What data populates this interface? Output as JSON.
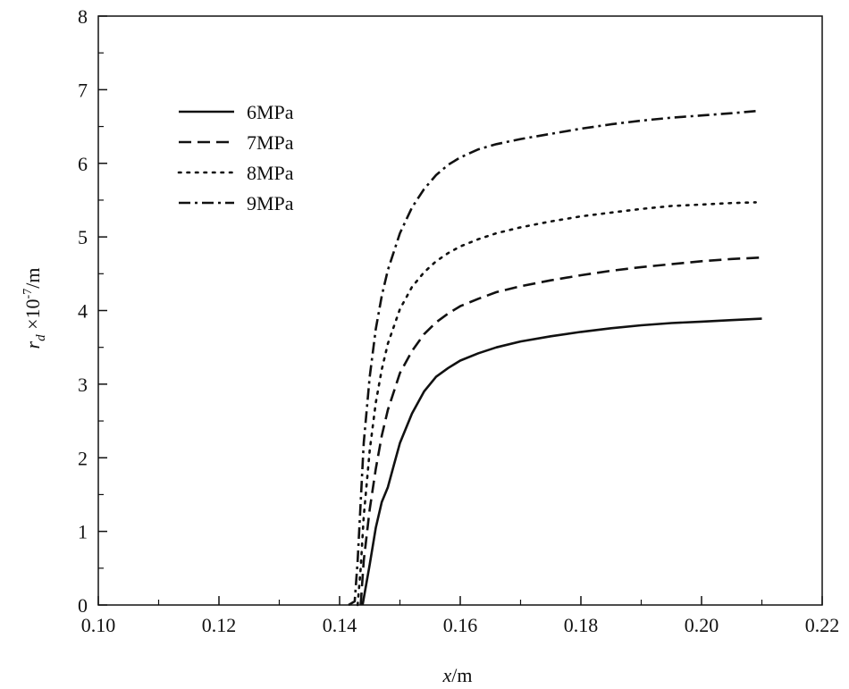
{
  "chart_data": {
    "type": "line",
    "xlabel": "x/m",
    "ylabel": "r_d ×10^-7/m",
    "xlim": [
      0.1,
      0.22
    ],
    "ylim": [
      0,
      8
    ],
    "xticks": [
      "0.10",
      "0.12",
      "0.14",
      "0.16",
      "0.18",
      "0.20",
      "0.22"
    ],
    "yticks": [
      "0",
      "1",
      "2",
      "3",
      "4",
      "5",
      "6",
      "7",
      "8"
    ],
    "grid": false,
    "legend_position": "top-left",
    "series": [
      {
        "name": "6MPa",
        "style": "solid",
        "x": [
          0.1438,
          0.145,
          0.146,
          0.147,
          0.148,
          0.149,
          0.15,
          0.152,
          0.154,
          0.156,
          0.158,
          0.16,
          0.163,
          0.166,
          0.17,
          0.175,
          0.18,
          0.185,
          0.19,
          0.195,
          0.2,
          0.205,
          0.21
        ],
        "y": [
          0.0,
          0.55,
          1.05,
          1.4,
          1.6,
          1.9,
          2.2,
          2.6,
          2.9,
          3.1,
          3.22,
          3.32,
          3.42,
          3.5,
          3.58,
          3.65,
          3.71,
          3.76,
          3.8,
          3.83,
          3.85,
          3.87,
          3.89
        ]
      },
      {
        "name": "7MPa",
        "style": "dashed",
        "x": [
          0.1435,
          0.144,
          0.145,
          0.146,
          0.147,
          0.148,
          0.15,
          0.152,
          0.154,
          0.156,
          0.158,
          0.16,
          0.163,
          0.166,
          0.17,
          0.175,
          0.18,
          0.185,
          0.19,
          0.195,
          0.2,
          0.205,
          0.21
        ],
        "y": [
          0.0,
          0.6,
          1.3,
          1.85,
          2.3,
          2.65,
          3.15,
          3.45,
          3.68,
          3.84,
          3.96,
          4.06,
          4.16,
          4.25,
          4.33,
          4.41,
          4.48,
          4.54,
          4.59,
          4.63,
          4.67,
          4.7,
          4.72
        ]
      },
      {
        "name": "8MPa",
        "style": "dotted",
        "x": [
          0.143,
          0.1435,
          0.144,
          0.145,
          0.146,
          0.147,
          0.148,
          0.15,
          0.152,
          0.154,
          0.156,
          0.158,
          0.16,
          0.163,
          0.166,
          0.17,
          0.175,
          0.18,
          0.185,
          0.19,
          0.195,
          0.2,
          0.205,
          0.209
        ],
        "y": [
          0.0,
          0.5,
          1.2,
          2.1,
          2.75,
          3.2,
          3.55,
          4.02,
          4.32,
          4.52,
          4.67,
          4.78,
          4.87,
          4.97,
          5.05,
          5.13,
          5.21,
          5.28,
          5.33,
          5.38,
          5.42,
          5.44,
          5.46,
          5.47
        ]
      },
      {
        "name": "9MPa",
        "style": "dashdot",
        "x": [
          0.1415,
          0.1425,
          0.143,
          0.1435,
          0.144,
          0.145,
          0.146,
          0.147,
          0.148,
          0.15,
          0.152,
          0.154,
          0.156,
          0.158,
          0.16,
          0.163,
          0.166,
          0.17,
          0.175,
          0.18,
          0.185,
          0.19,
          0.195,
          0.2,
          0.205,
          0.209
        ],
        "y": [
          0.0,
          0.05,
          0.6,
          1.4,
          2.2,
          3.1,
          3.75,
          4.2,
          4.55,
          5.05,
          5.4,
          5.65,
          5.84,
          5.98,
          6.08,
          6.19,
          6.26,
          6.33,
          6.4,
          6.47,
          6.53,
          6.58,
          6.62,
          6.65,
          6.68,
          6.71
        ]
      }
    ]
  }
}
